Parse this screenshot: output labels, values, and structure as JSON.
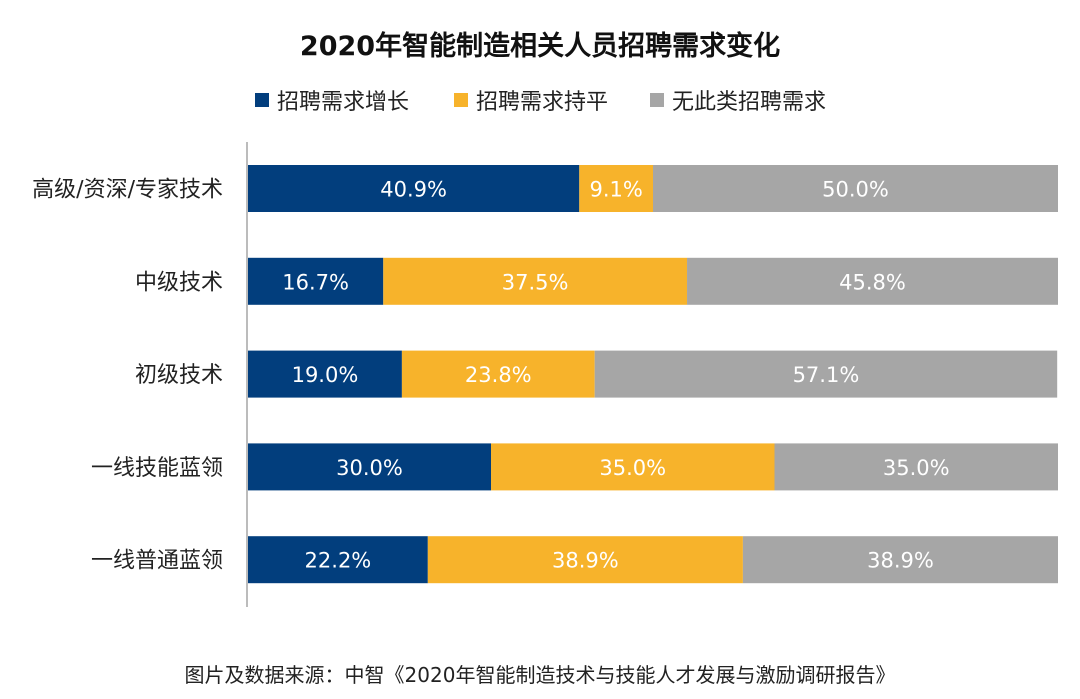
{
  "chart_data": {
    "type": "bar",
    "orientation": "horizontal",
    "stacked": true,
    "title": "2020年智能制造相关人员招聘需求变化",
    "categories": [
      "高级/资深/专家技术",
      "中级技术",
      "初级技术",
      "一线技能蓝领",
      "一线普通蓝领"
    ],
    "series": [
      {
        "name": "招聘需求增长",
        "color": "#023e7d",
        "values": [
          40.9,
          16.7,
          19.0,
          30.0,
          22.2
        ],
        "labels": [
          "40.9%",
          "16.7%",
          "19.0%",
          "30.0%",
          "22.2%"
        ]
      },
      {
        "name": "招聘需求持平",
        "color": "#f7b32b",
        "values": [
          9.1,
          37.5,
          23.8,
          35.0,
          38.9
        ],
        "labels": [
          "9.1%",
          "37.5%",
          "23.8%",
          "35.0%",
          "38.9%"
        ]
      },
      {
        "name": "无此类招聘需求",
        "color": "#a6a6a6",
        "values": [
          50.0,
          45.8,
          57.1,
          35.0,
          38.9
        ],
        "labels": [
          "50.0%",
          "45.8%",
          "57.1%",
          "35.0%",
          "38.9%"
        ]
      }
    ],
    "xlim": [
      0,
      100
    ],
    "xlabel": "",
    "ylabel": "",
    "grid": false,
    "legend_position": "top-center",
    "axis_color": "#a6a6a6"
  },
  "source": "图片及数据来源：中智《2020年智能制造技术与技能人才发展与激励调研报告》"
}
